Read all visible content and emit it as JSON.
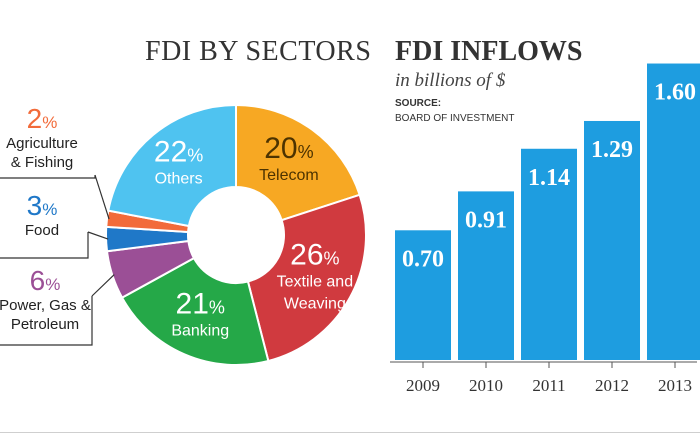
{
  "chart_data": [
    {
      "type": "pie",
      "title": "FDI BY SECTORS",
      "slices": [
        {
          "label": "Telecom",
          "value": 20,
          "color": "#f7a823",
          "label_color": "#4d3300"
        },
        {
          "label": "Textile and Weaving",
          "value": 26,
          "color": "#d03a3f",
          "label_color": "#ffffff"
        },
        {
          "label": "Banking",
          "value": 21,
          "color": "#25a848",
          "label_color": "#ffffff"
        },
        {
          "label": "Power, Gas & Petroleum",
          "value": 6,
          "color": "#9b4f96",
          "label_color": "#ffffff"
        },
        {
          "label": "Food",
          "value": 3,
          "color": "#1f78c8",
          "label_color": "#ffffff"
        },
        {
          "label": "Agriculture & Fishing",
          "value": 2,
          "color": "#f26b3a",
          "label_color": "#ffffff"
        },
        {
          "label": "Others",
          "value": 22,
          "color": "#4fc3f0",
          "label_color": "#ffffff"
        }
      ],
      "inside_labels": [
        {
          "slice": "Telecom",
          "pct_text": "20",
          "lines": [
            "Telecom"
          ]
        },
        {
          "slice": "Textile and Weaving",
          "pct_text": "26",
          "lines": [
            "Textile and",
            "Weaving"
          ]
        },
        {
          "slice": "Banking",
          "pct_text": "21",
          "lines": [
            "Banking"
          ]
        },
        {
          "slice": "Others",
          "pct_text": "22",
          "lines": [
            "Others"
          ]
        }
      ],
      "callouts": [
        {
          "slice": "Agriculture & Fishing",
          "pct_text": "2",
          "lines": [
            "Agriculture",
            "& Fishing"
          ],
          "color": "#f26b3a"
        },
        {
          "slice": "Food",
          "pct_text": "3",
          "lines": [
            "Food"
          ],
          "color": "#1f78c8"
        },
        {
          "slice": "Power, Gas & Petroleum",
          "pct_text": "6",
          "lines": [
            "Power, Gas &",
            "Petroleum"
          ],
          "color": "#9b4f96"
        }
      ]
    },
    {
      "type": "bar",
      "title": "FDI INFLOWS",
      "subtitle": "in billions of $",
      "source_label": "SOURCE:",
      "source_text": "BOARD OF INVESTMENT",
      "categories": [
        "2009",
        "2010",
        "2011",
        "2012",
        "2013"
      ],
      "values": [
        0.7,
        0.91,
        1.14,
        1.29,
        1.6
      ],
      "value_labels": [
        "0.70",
        "0.91",
        "1.14",
        "1.29",
        "1.60"
      ],
      "color": "#1e9de0",
      "ylim": [
        0,
        1.7
      ]
    }
  ]
}
